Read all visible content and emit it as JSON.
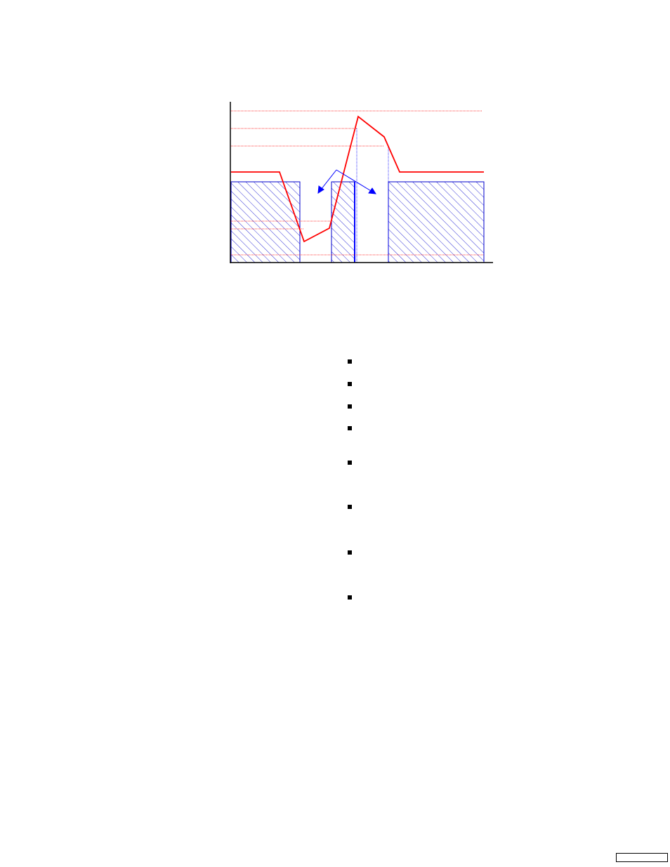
{
  "diagram": {
    "colors": {
      "signal": "#ff0000",
      "region": "#0000cc",
      "axis": "#000000",
      "guide_red": "#ff0000",
      "guide_blue": "#0000ff"
    },
    "arrow_icon": "branching-arrow-icon"
  },
  "bullets": {
    "count": 8,
    "icon": "square-bullet-icon"
  }
}
